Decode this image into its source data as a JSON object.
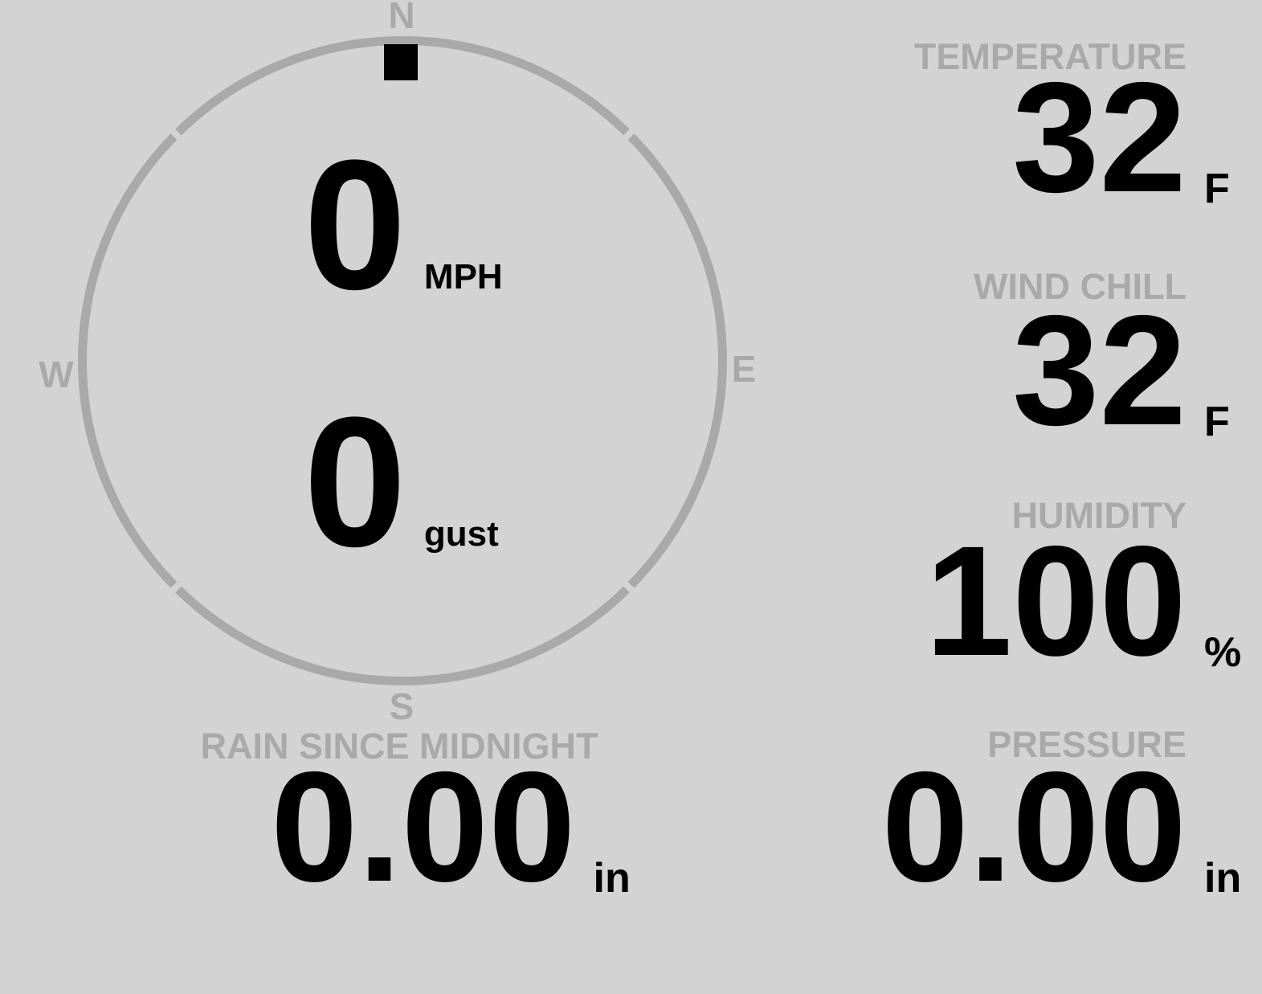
{
  "colors": {
    "background": "#d3d3d3",
    "muted_gray": "#a9a9a9",
    "value_black": "#000000"
  },
  "wind_gauge": {
    "north_label": "N",
    "east_label": "E",
    "south_label": "S",
    "west_label": "W",
    "direction": "N",
    "speed": {
      "value": "0",
      "unit": "MPH"
    },
    "gust": {
      "value": "0",
      "unit": "gust"
    }
  },
  "temperature": {
    "label": "TEMPERATURE",
    "value": "32",
    "unit": "F"
  },
  "wind_chill": {
    "label": "WIND CHILL",
    "value": "32",
    "unit": "F"
  },
  "humidity": {
    "label": "HUMIDITY",
    "value": "100",
    "unit": "%"
  },
  "rain_since_midnight": {
    "label": "RAIN SINCE MIDNIGHT",
    "value": "0.00",
    "unit": "in"
  },
  "pressure": {
    "label": "PRESSURE",
    "value": "0.00",
    "unit": "in"
  }
}
